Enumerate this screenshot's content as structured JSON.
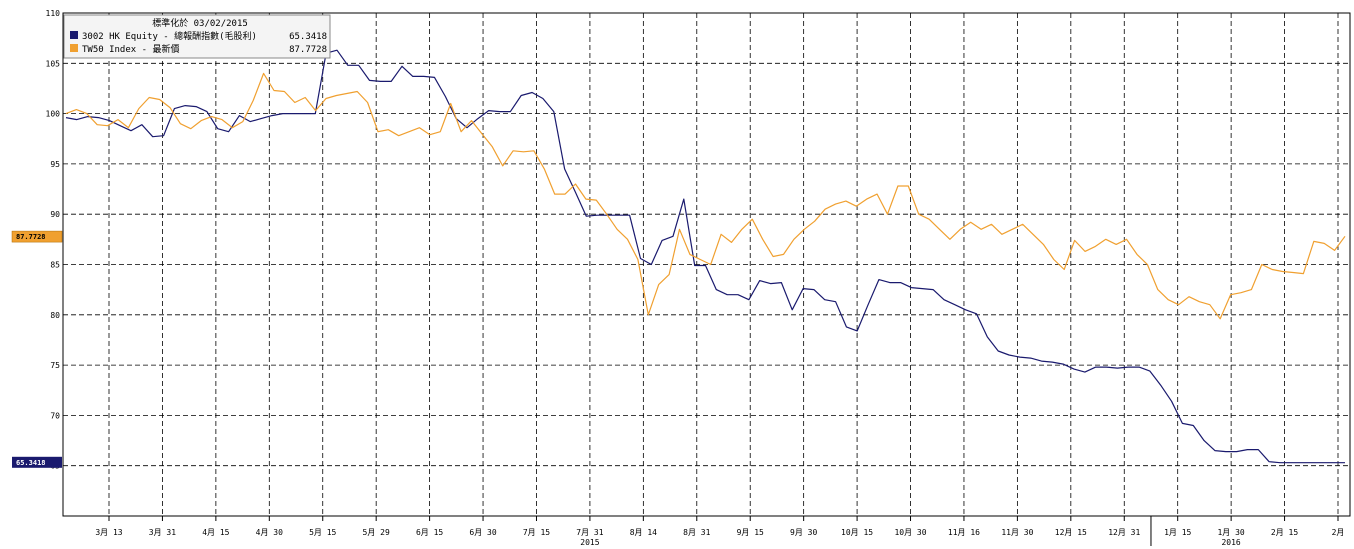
{
  "chart_data": {
    "type": "line",
    "title": "標準化於 03/02/2015",
    "ylim": [
      60,
      110
    ],
    "y_ticks": [
      65,
      70,
      75,
      80,
      85,
      90,
      95,
      100,
      105,
      110
    ],
    "x_tick_labels": [
      "3月 13",
      "3月 31",
      "4月 15",
      "4月 30",
      "5月 15",
      "5月 29",
      "6月 15",
      "6月 30",
      "7月 15",
      "7月 31",
      "8月 14",
      "8月 31",
      "9月 15",
      "9月 30",
      "10月 15",
      "10月 30",
      "11月 16",
      "11月 30",
      "12月 15",
      "12月 31",
      "1月 15",
      "1月 30",
      "2月 15",
      "2月"
    ],
    "year_labels": [
      "2015",
      "2016"
    ],
    "grid": true,
    "legend_position": "top-left",
    "series": [
      {
        "name": "3002 HK Equity - 總報酬指數(毛股利)",
        "last_value": "65.3418",
        "color": "#1a1a6e",
        "values": [
          99.6,
          99.4,
          99.7,
          99.6,
          99.3,
          98.8,
          98.3,
          98.9,
          97.7,
          97.8,
          100.5,
          100.8,
          100.7,
          100.2,
          98.5,
          98.2,
          99.8,
          99.2,
          99.5,
          99.8,
          100,
          100,
          100,
          100,
          106,
          106.3,
          104.8,
          104.8,
          103.3,
          103.2,
          103.2,
          104.7,
          103.7,
          103.7,
          103.6,
          101.7,
          99.5,
          98.6,
          99.5,
          100.3,
          100.2,
          100.2,
          101.8,
          102.1,
          101.5,
          100.2,
          94.5,
          92.2,
          89.8,
          89.9,
          89.9,
          89.9,
          89.9,
          85.6,
          85,
          87.4,
          87.8,
          91.5,
          84.9,
          84.9,
          82.5,
          82,
          82,
          81.5,
          83.4,
          83.1,
          83.2,
          80.5,
          82.6,
          82.5,
          81.5,
          81.3,
          78.8,
          78.4,
          81,
          83.5,
          83.2,
          83.2,
          82.7,
          82.6,
          82.5,
          81.5,
          81,
          80.5,
          80.1,
          77.8,
          76.4,
          76,
          75.8,
          75.7,
          75.4,
          75.3,
          75.1,
          74.6,
          74.3,
          74.8,
          74.8,
          74.7,
          74.8,
          74.8,
          74.4,
          73,
          71.4,
          69.2,
          69,
          67.5,
          66.5,
          66.4,
          66.4,
          66.6,
          66.6,
          65.4,
          65.3,
          65.3,
          65.3,
          65.3,
          65.3,
          65.3,
          65.3
        ]
      },
      {
        "name": "TW50 Index - 最新價",
        "last_value": "87.7728",
        "color": "#f0a030",
        "values": [
          100,
          100.4,
          100,
          98.9,
          98.8,
          99.4,
          98.6,
          100.5,
          101.6,
          101.4,
          100.6,
          99,
          98.5,
          99.3,
          99.7,
          99.4,
          98.6,
          99.2,
          101.3,
          104,
          102.3,
          102.2,
          101.1,
          101.6,
          100.3,
          101.5,
          101.8,
          102,
          102.2,
          101.1,
          98.2,
          98.4,
          97.8,
          98.2,
          98.6,
          97.9,
          98.2,
          101,
          98.2,
          99.3,
          98,
          96.7,
          94.8,
          96.3,
          96.2,
          96.3,
          94.5,
          92,
          92,
          93,
          91.5,
          91.4,
          90,
          88.5,
          87.5,
          85.5,
          80,
          83,
          84,
          88.5,
          86,
          85.5,
          85,
          88,
          87.2,
          88.5,
          89.5,
          87.5,
          85.8,
          86,
          87.5,
          88.5,
          89.3,
          90.5,
          91,
          91.3,
          90.8,
          91.5,
          92,
          90,
          92.8,
          92.8,
          90,
          89.5,
          88.5,
          87.5,
          88.5,
          89.2,
          88.5,
          89,
          88,
          88.5,
          89,
          88,
          87,
          85.5,
          84.5,
          87.4,
          86.3,
          86.8,
          87.5,
          87,
          87.5,
          86,
          85,
          82.5,
          81.5,
          81,
          81.8,
          81.3,
          81,
          79.6,
          82,
          82.2,
          82.5,
          85,
          84.5,
          84.3,
          84.2,
          84.1,
          87.3,
          87.1,
          86.4,
          87.8
        ]
      }
    ]
  }
}
